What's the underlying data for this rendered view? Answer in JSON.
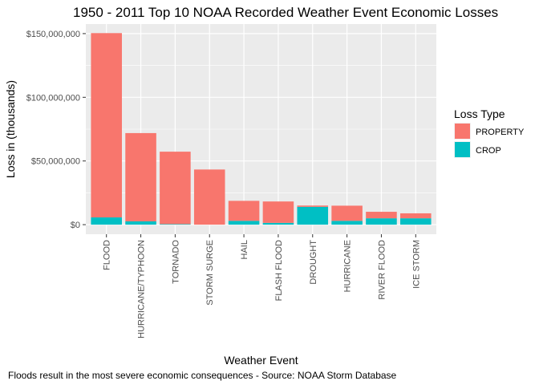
{
  "chart_data": {
    "type": "bar",
    "stacked": true,
    "title": "1950 - 2011 Top 10 NOAA Recorded Weather Event Economic Losses",
    "xlabel": "Weather Event",
    "ylabel": "Loss in (thousands)",
    "caption": "Floods result in the most severe economic consequences - Source: NOAA Storm Database",
    "categories": [
      "FLOOD",
      "HURRICANE/TYPHOON",
      "TORNADO",
      "STORM SURGE",
      "HAIL",
      "FLASH FLOOD",
      "DROUGHT",
      "HURRICANE",
      "RIVER FLOOD",
      "ICE STORM"
    ],
    "series": [
      {
        "name": "PROPERTY",
        "color": "#F8766D",
        "values": [
          144700000,
          69300000,
          56900000,
          43300000,
          15700000,
          16800000,
          1000000,
          11900000,
          5100000,
          3900000
        ]
      },
      {
        "name": "CROP",
        "color": "#00BFC4",
        "values": [
          5700000,
          2600000,
          400000,
          0,
          3000000,
          1400000,
          14000000,
          3000000,
          5000000,
          5000000
        ]
      }
    ],
    "ylim": [
      -7500000,
      157500000
    ],
    "yticks": [
      0,
      50000000,
      100000000,
      150000000
    ],
    "ytick_labels": [
      "$0",
      "$50,000,000",
      "$100,000,000",
      "$150,000,000"
    ],
    "grid": true,
    "legend": {
      "title": "Loss Type",
      "position": "right",
      "items": [
        "PROPERTY",
        "CROP"
      ]
    }
  }
}
